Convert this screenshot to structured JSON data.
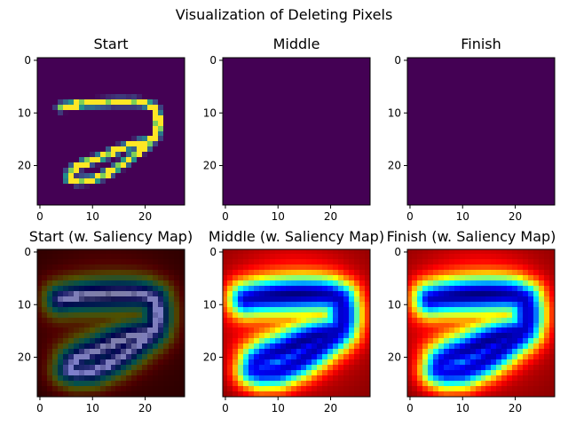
{
  "figure_title": "Visualization of Deleting Pixels",
  "chart_data": [
    {
      "type": "heatmap",
      "title": "Start",
      "image": "digit",
      "colormap": "viridis",
      "xticks": [
        0,
        10,
        20
      ],
      "yticks": [
        0,
        10,
        20
      ],
      "xlim": [
        0,
        27
      ],
      "ylim": [
        27,
        0
      ]
    },
    {
      "type": "heatmap",
      "title": "Middle",
      "image": "blank",
      "colormap": "viridis",
      "xticks": [
        0,
        10,
        20
      ],
      "yticks": [
        0,
        10,
        20
      ],
      "xlim": [
        0,
        27
      ],
      "ylim": [
        27,
        0
      ]
    },
    {
      "type": "heatmap",
      "title": "Finish",
      "image": "blank",
      "colormap": "viridis",
      "xticks": [
        0,
        10,
        20
      ],
      "yticks": [
        0,
        10,
        20
      ],
      "xlim": [
        0,
        27
      ],
      "ylim": [
        27,
        0
      ]
    },
    {
      "type": "heatmap",
      "title": "Start (w. Saliency Map)",
      "image": "digit + saliency overlay",
      "colormap": "jet",
      "xticks": [
        0,
        10,
        20
      ],
      "yticks": [
        0,
        10,
        20
      ],
      "xlim": [
        0,
        27
      ],
      "ylim": [
        27,
        0
      ]
    },
    {
      "type": "heatmap",
      "title": "Middle (w. Saliency Map)",
      "image": "saliency",
      "colormap": "jet",
      "xticks": [
        0,
        10,
        20
      ],
      "yticks": [
        0,
        10,
        20
      ],
      "xlim": [
        0,
        27
      ],
      "ylim": [
        27,
        0
      ]
    },
    {
      "type": "heatmap",
      "title": "Finish (w. Saliency Map)",
      "image": "saliency",
      "colormap": "jet",
      "xticks": [
        0,
        10,
        20
      ],
      "yticks": [
        0,
        10,
        20
      ],
      "xlim": [
        0,
        27
      ],
      "ylim": [
        27,
        0
      ]
    }
  ],
  "colors": {
    "viridis_low": "#440154",
    "jet_low": "#800000"
  }
}
